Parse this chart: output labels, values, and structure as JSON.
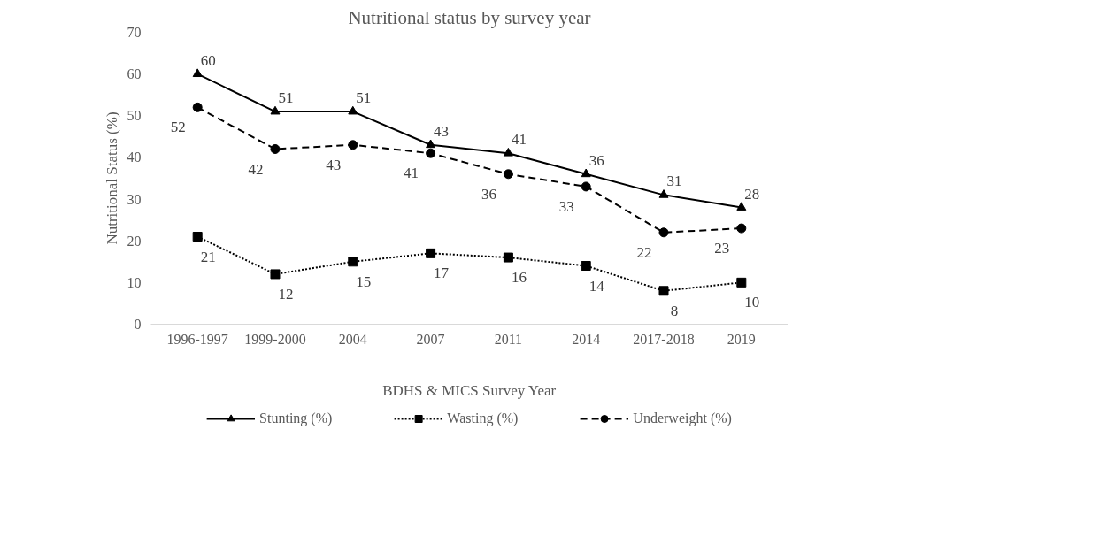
{
  "chart_data": {
    "type": "line",
    "title": "Nutritional status by survey year",
    "xlabel": "BDHS & MICS Survey Year",
    "ylabel": "Nutritional Status (%)",
    "categories": [
      "1996-1997",
      "1999-2000",
      "2004",
      "2007",
      "2011",
      "2014",
      "2017-2018",
      "2019"
    ],
    "series": [
      {
        "name": "Stunting (%)",
        "color": "#000000",
        "marker": "triangle",
        "line_style": "solid",
        "values": [
          60,
          51,
          51,
          43,
          41,
          36,
          31,
          28
        ]
      },
      {
        "name": "Wasting (%)",
        "color": "#000000",
        "marker": "square",
        "line_style": "dotted",
        "values": [
          21,
          12,
          15,
          17,
          16,
          14,
          8,
          10
        ]
      },
      {
        "name": "Underweight (%)",
        "color": "#000000",
        "marker": "circle",
        "line_style": "dashed",
        "values": [
          52,
          42,
          43,
          41,
          36,
          33,
          22,
          23
        ]
      }
    ],
    "ylim": [
      0,
      70
    ],
    "yticks": [
      0,
      10,
      20,
      30,
      40,
      50,
      60,
      70
    ],
    "data_labels": true,
    "legend": "bottom"
  }
}
